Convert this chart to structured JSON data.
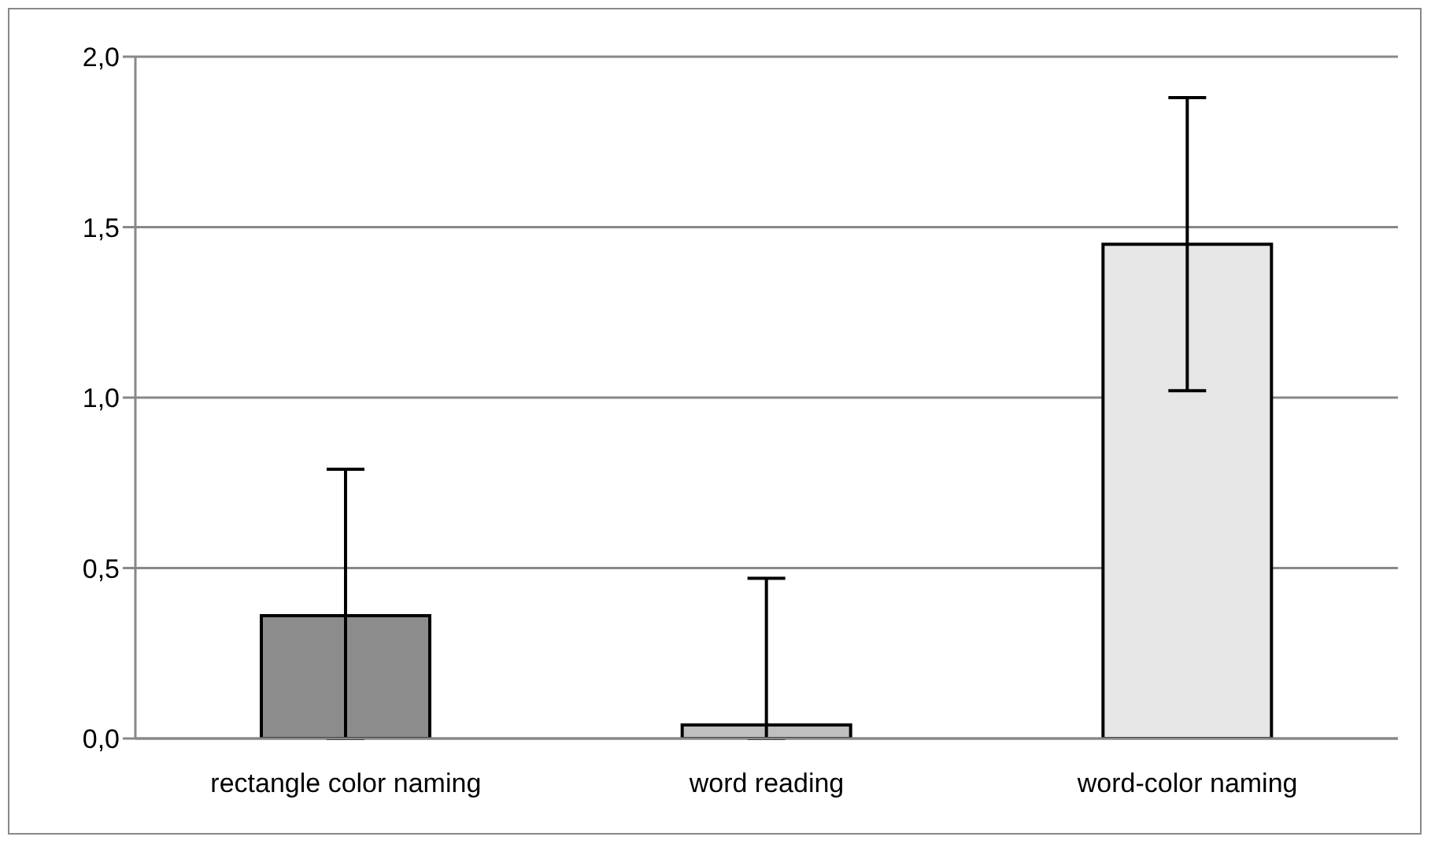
{
  "chart_data": {
    "type": "bar",
    "categories": [
      "rectangle color naming",
      "word reading",
      "word-color naming"
    ],
    "values": [
      0.36,
      0.04,
      1.45
    ],
    "errors": [
      [
        0,
        0.79
      ],
      [
        0,
        0.47
      ],
      0.43
    ],
    "colors": [
      "#8c8c8c",
      "#bfbfbf",
      "#e6e6e6"
    ],
    "ylim": [
      0,
      2
    ],
    "yticks": [
      {
        "value": 0,
        "label": "0,0"
      },
      {
        "value": 0.5,
        "label": "0,5"
      },
      {
        "value": 1,
        "label": "1,0"
      },
      {
        "value": 1.5,
        "label": "1,5"
      },
      {
        "value": 2,
        "label": "2,0"
      }
    ],
    "grid": "y",
    "legend": false
  }
}
